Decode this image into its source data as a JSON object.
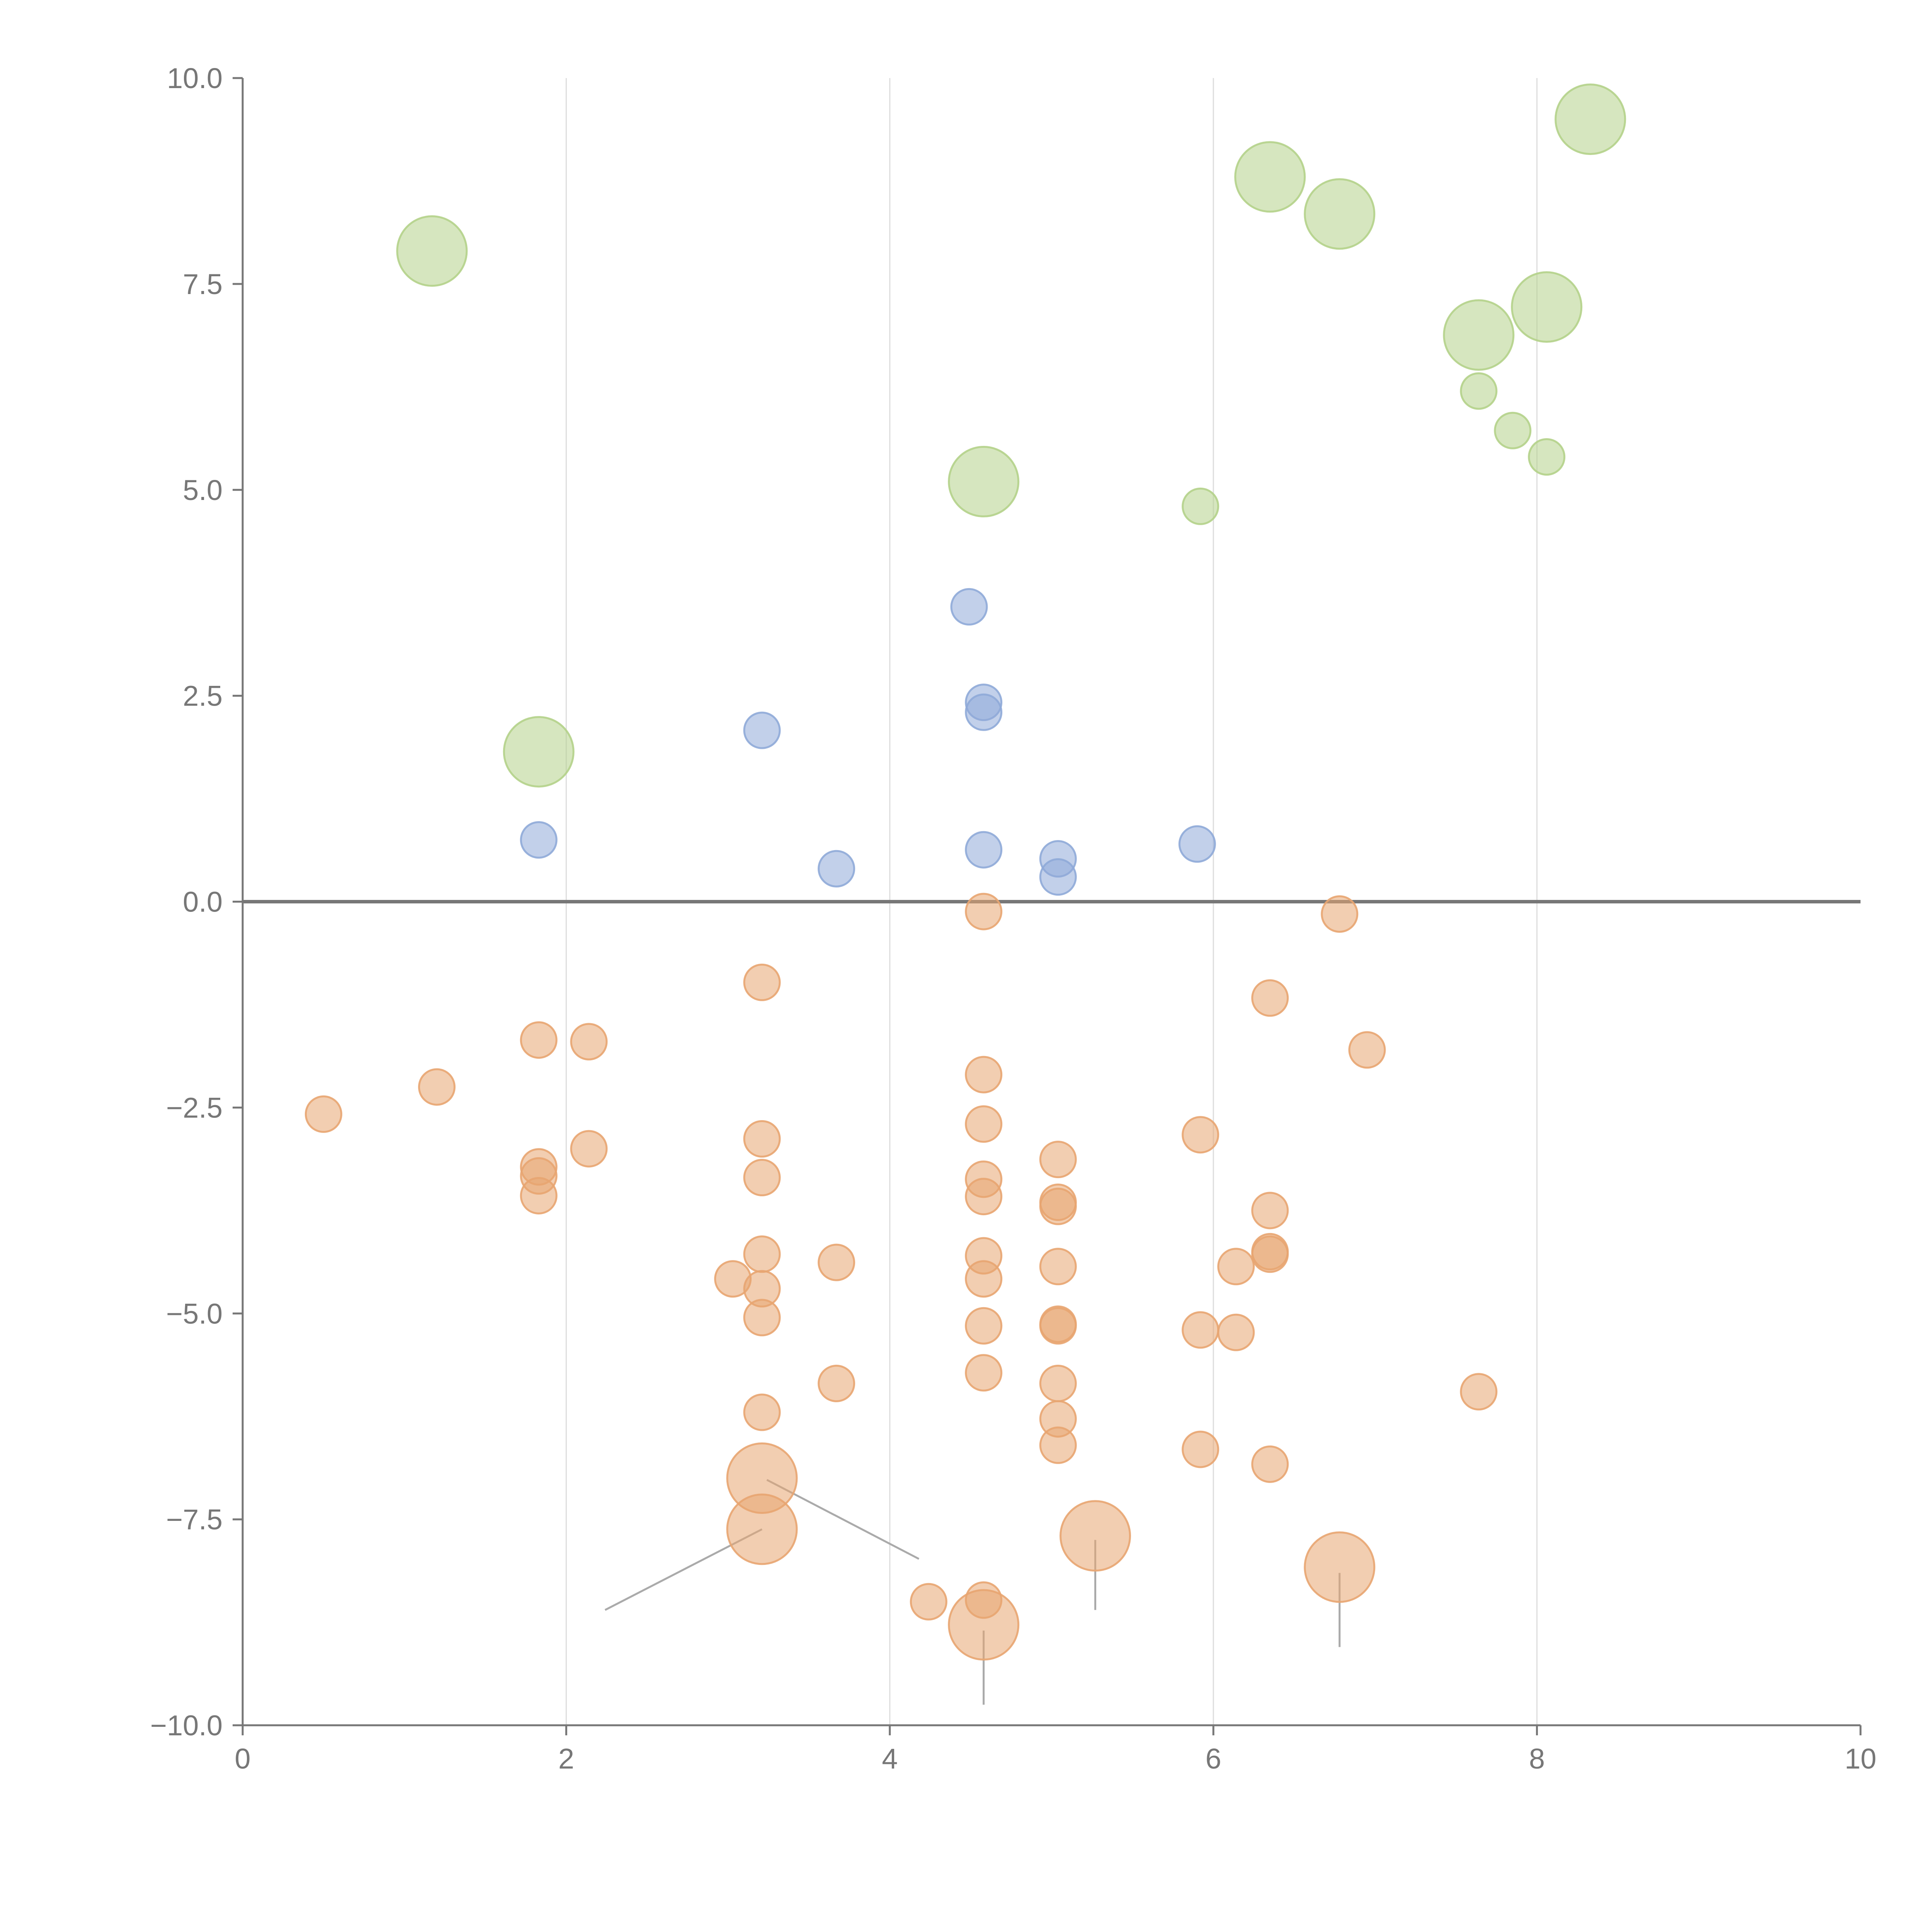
{
  "chart_data": {
    "type": "scatter",
    "title": "",
    "xlabel": "",
    "ylabel": "",
    "xlim": [
      0,
      10
    ],
    "ylim": [
      -10,
      10
    ],
    "x_ticks": [
      0,
      2,
      4,
      6,
      8,
      10
    ],
    "x_tick_labels": [
      "0",
      "2",
      "4",
      "6",
      "8",
      "10"
    ],
    "y_ticks": [
      10,
      7.5,
      5,
      2.5,
      0,
      -2.5,
      -5,
      -7.5,
      -10
    ],
    "y_tick_labels": [
      "10.0",
      "7.5",
      "5.0",
      "2.5",
      "0.0",
      "−2.5",
      "−5.0",
      "−7.5",
      "−10.0"
    ],
    "grid": "vertical",
    "reference_line_y": 0,
    "series": [
      {
        "name": "green",
        "color": "#b4d18a",
        "points": [
          {
            "x": 1.17,
            "y": 7.9,
            "size": "large"
          },
          {
            "x": 1.83,
            "y": 1.82,
            "size": "large"
          },
          {
            "x": 4.58,
            "y": 5.1,
            "size": "large"
          },
          {
            "x": 5.92,
            "y": 4.8,
            "size": "small"
          },
          {
            "x": 6.35,
            "y": 8.8,
            "size": "large"
          },
          {
            "x": 6.78,
            "y": 8.35,
            "size": "large"
          },
          {
            "x": 7.64,
            "y": 6.88,
            "size": "large"
          },
          {
            "x": 7.64,
            "y": 6.2,
            "size": "small"
          },
          {
            "x": 7.85,
            "y": 5.72,
            "size": "small"
          },
          {
            "x": 8.06,
            "y": 7.22,
            "size": "large"
          },
          {
            "x": 8.06,
            "y": 5.4,
            "size": "small"
          },
          {
            "x": 8.33,
            "y": 9.5,
            "size": "large"
          }
        ]
      },
      {
        "name": "blue",
        "color": "#8faad8",
        "points": [
          {
            "x": 1.83,
            "y": 0.75,
            "size": "small"
          },
          {
            "x": 3.21,
            "y": 2.08,
            "size": "small"
          },
          {
            "x": 3.67,
            "y": 0.4,
            "size": "small"
          },
          {
            "x": 4.49,
            "y": 3.58,
            "size": "small"
          },
          {
            "x": 4.58,
            "y": 2.42,
            "size": "small"
          },
          {
            "x": 4.58,
            "y": 2.3,
            "size": "small"
          },
          {
            "x": 4.58,
            "y": 0.63,
            "size": "small"
          },
          {
            "x": 5.04,
            "y": 0.52,
            "size": "small"
          },
          {
            "x": 5.04,
            "y": 0.3,
            "size": "small"
          },
          {
            "x": 5.9,
            "y": 0.7,
            "size": "small"
          }
        ]
      },
      {
        "name": "orange",
        "color": "#e8a571",
        "points": [
          {
            "x": 0.5,
            "y": -2.58,
            "size": "small"
          },
          {
            "x": 1.2,
            "y": -2.25,
            "size": "small"
          },
          {
            "x": 1.83,
            "y": -1.68,
            "size": "small"
          },
          {
            "x": 1.83,
            "y": -3.22,
            "size": "small"
          },
          {
            "x": 1.83,
            "y": -3.33,
            "size": "small"
          },
          {
            "x": 1.83,
            "y": -3.57,
            "size": "small"
          },
          {
            "x": 2.14,
            "y": -1.7,
            "size": "small"
          },
          {
            "x": 2.14,
            "y": -3.0,
            "size": "small"
          },
          {
            "x": 3.03,
            "y": -4.58,
            "size": "small"
          },
          {
            "x": 3.21,
            "y": -0.98,
            "size": "small"
          },
          {
            "x": 3.21,
            "y": -2.88,
            "size": "small"
          },
          {
            "x": 3.21,
            "y": -3.35,
            "size": "small"
          },
          {
            "x": 3.21,
            "y": -4.28,
            "size": "small"
          },
          {
            "x": 3.21,
            "y": -4.7,
            "size": "small"
          },
          {
            "x": 3.21,
            "y": -5.05,
            "size": "small"
          },
          {
            "x": 3.21,
            "y": -6.2,
            "size": "small"
          },
          {
            "x": 3.21,
            "y": -7.0,
            "size": "large"
          },
          {
            "x": 3.21,
            "y": -7.62,
            "size": "large"
          },
          {
            "x": 3.67,
            "y": -4.38,
            "size": "small"
          },
          {
            "x": 3.67,
            "y": -5.85,
            "size": "small"
          },
          {
            "x": 4.24,
            "y": -8.5,
            "size": "small"
          },
          {
            "x": 4.58,
            "y": -0.12,
            "size": "small"
          },
          {
            "x": 4.58,
            "y": -2.1,
            "size": "small"
          },
          {
            "x": 4.58,
            "y": -2.7,
            "size": "small"
          },
          {
            "x": 4.58,
            "y": -3.37,
            "size": "small"
          },
          {
            "x": 4.58,
            "y": -3.58,
            "size": "small"
          },
          {
            "x": 4.58,
            "y": -4.3,
            "size": "small"
          },
          {
            "x": 4.58,
            "y": -4.58,
            "size": "small"
          },
          {
            "x": 4.58,
            "y": -5.15,
            "size": "small"
          },
          {
            "x": 4.58,
            "y": -5.72,
            "size": "small"
          },
          {
            "x": 4.58,
            "y": -8.48,
            "size": "small"
          },
          {
            "x": 4.58,
            "y": -8.78,
            "size": "large"
          },
          {
            "x": 5.04,
            "y": -3.13,
            "size": "small"
          },
          {
            "x": 5.04,
            "y": -3.65,
            "size": "small"
          },
          {
            "x": 5.04,
            "y": -3.7,
            "size": "small"
          },
          {
            "x": 5.04,
            "y": -4.43,
            "size": "small"
          },
          {
            "x": 5.04,
            "y": -5.13,
            "size": "small"
          },
          {
            "x": 5.04,
            "y": -5.15,
            "size": "small"
          },
          {
            "x": 5.04,
            "y": -5.85,
            "size": "small"
          },
          {
            "x": 5.04,
            "y": -6.28,
            "size": "small"
          },
          {
            "x": 5.04,
            "y": -6.6,
            "size": "small"
          },
          {
            "x": 5.27,
            "y": -7.7,
            "size": "large"
          },
          {
            "x": 5.92,
            "y": -2.83,
            "size": "small"
          },
          {
            "x": 5.92,
            "y": -5.2,
            "size": "small"
          },
          {
            "x": 5.92,
            "y": -6.65,
            "size": "small"
          },
          {
            "x": 6.14,
            "y": -4.43,
            "size": "small"
          },
          {
            "x": 6.14,
            "y": -5.23,
            "size": "small"
          },
          {
            "x": 6.35,
            "y": -1.17,
            "size": "small"
          },
          {
            "x": 6.35,
            "y": -3.75,
            "size": "small"
          },
          {
            "x": 6.35,
            "y": -4.25,
            "size": "small"
          },
          {
            "x": 6.35,
            "y": -4.28,
            "size": "small"
          },
          {
            "x": 6.35,
            "y": -6.83,
            "size": "small"
          },
          {
            "x": 6.78,
            "y": -0.15,
            "size": "small"
          },
          {
            "x": 6.78,
            "y": -8.08,
            "size": "large"
          },
          {
            "x": 6.95,
            "y": -1.8,
            "size": "small"
          },
          {
            "x": 7.64,
            "y": -5.95,
            "size": "small"
          }
        ]
      }
    ],
    "leader_lines": [
      {
        "x1": 3.21,
        "y1": -7.62,
        "x2": 2.24,
        "y2": -8.6
      },
      {
        "x1": 3.24,
        "y1": -7.02,
        "x2": 4.18,
        "y2": -7.98
      },
      {
        "x1": 4.58,
        "y1": -8.85,
        "x2": 4.58,
        "y2": -9.75
      },
      {
        "x1": 5.27,
        "y1": -7.75,
        "x2": 5.27,
        "y2": -8.6
      },
      {
        "x1": 6.78,
        "y1": -8.15,
        "x2": 6.78,
        "y2": -9.05
      }
    ]
  }
}
